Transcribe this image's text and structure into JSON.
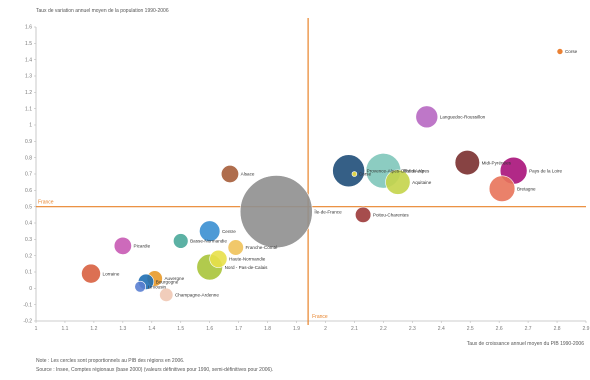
{
  "chart_data": {
    "type": "scatter",
    "title": "",
    "ylabel": "Taux de variation annuel moyen de la population 1990-2006",
    "xlabel": "Taux de croissance annuel moyen du PIB 1990-2006",
    "xlim": [
      1.0,
      2.9
    ],
    "ylim": [
      -0.2,
      1.6
    ],
    "x_ticks": [
      1,
      1.1,
      1.2,
      1.3,
      1.4,
      1.5,
      1.6,
      1.7,
      1.8,
      1.9,
      2,
      2.1,
      2.2,
      2.3,
      2.4,
      2.5,
      2.6,
      2.7,
      2.8,
      2.9
    ],
    "y_ticks": [
      -0.2,
      -0.1,
      0,
      0.1,
      0.2,
      0.3,
      0.4,
      0.5,
      0.6,
      0.7,
      0.8,
      0.9,
      1,
      1.1,
      1.2,
      1.3,
      1.4,
      1.5,
      1.6
    ],
    "grid": false,
    "reference_lines": [
      {
        "axis": "x",
        "value": 1.94,
        "label": "France",
        "color": "#e8832a"
      },
      {
        "axis": "y",
        "value": 0.5,
        "label": "France",
        "color": "#e8832a"
      }
    ],
    "points": [
      {
        "label": "Corse",
        "x": 2.81,
        "y": 1.45,
        "size": 0.03,
        "color": "#e8731e"
      },
      {
        "label": "Languedoc-Roussillon",
        "x": 2.35,
        "y": 1.05,
        "size": 0.4,
        "color": "#b768c2"
      },
      {
        "label": "Midi-Pyrénées",
        "x": 2.49,
        "y": 0.77,
        "size": 0.5,
        "color": "#7a2f2f"
      },
      {
        "label": "Pays de la Loire",
        "x": 2.65,
        "y": 0.72,
        "size": 0.6,
        "color": "#a8127a"
      },
      {
        "label": "Bretagne",
        "x": 2.61,
        "y": 0.61,
        "size": 0.55,
        "color": "#e8735a"
      },
      {
        "label": "Rhône-Alpes",
        "x": 2.2,
        "y": 0.72,
        "size": 1.0,
        "color": "#7fc7ba"
      },
      {
        "label": "Provence-Alpes-Côte d'Azur",
        "x": 2.08,
        "y": 0.72,
        "size": 0.85,
        "color": "#1f4e79"
      },
      {
        "label": "Corse",
        "x": 2.1,
        "y": 0.7,
        "size": 0.02,
        "color": "#f0e040"
      },
      {
        "label": "Aquitaine",
        "x": 2.25,
        "y": 0.65,
        "size": 0.5,
        "color": "#c4d44a"
      },
      {
        "label": "Poitou-Charentes",
        "x": 2.13,
        "y": 0.45,
        "size": 0.2,
        "color": "#9c3a3a"
      },
      {
        "label": "Alsace",
        "x": 1.67,
        "y": 0.7,
        "size": 0.25,
        "color": "#a65d3a"
      },
      {
        "label": "Île-de-France",
        "x": 1.83,
        "y": 0.47,
        "size": 4.3,
        "color": "#8f8f8f"
      },
      {
        "label": "Centre",
        "x": 1.6,
        "y": 0.35,
        "size": 0.35,
        "color": "#3a8fd1"
      },
      {
        "label": "Basse-Normandie",
        "x": 1.5,
        "y": 0.29,
        "size": 0.18,
        "color": "#4aa89a"
      },
      {
        "label": "Franche-Comté",
        "x": 1.69,
        "y": 0.25,
        "size": 0.2,
        "color": "#f0c25a"
      },
      {
        "label": "Haute-Normandie",
        "x": 1.63,
        "y": 0.18,
        "size": 0.25,
        "color": "#e8e04a"
      },
      {
        "label": "Nord - Pas-de-Calais",
        "x": 1.6,
        "y": 0.13,
        "size": 0.55,
        "color": "#a8c43a"
      },
      {
        "label": "Picardie",
        "x": 1.3,
        "y": 0.26,
        "size": 0.25,
        "color": "#c85ab4"
      },
      {
        "label": "Lorraine",
        "x": 1.19,
        "y": 0.09,
        "size": 0.3,
        "color": "#d86040"
      },
      {
        "label": "Auvergne",
        "x": 1.41,
        "y": 0.06,
        "size": 0.2,
        "color": "#e89a2a"
      },
      {
        "label": "Bourgogne",
        "x": 1.38,
        "y": 0.04,
        "size": 0.2,
        "color": "#1f6fb4"
      },
      {
        "label": "Limousin",
        "x": 1.36,
        "y": 0.01,
        "size": 0.1,
        "color": "#5a7fd1"
      },
      {
        "label": "Champagne-Ardenne",
        "x": 1.45,
        "y": -0.04,
        "size": 0.15,
        "color": "#f0c8b4"
      }
    ],
    "notes": [
      "Note : Les cercles sont proportionnels au PIB des régions en 2006.",
      "Source : Insee, Comptes régionaux (base 2000) (valeurs définitives pour 1990, semi-définitives pour 2006)."
    ]
  }
}
